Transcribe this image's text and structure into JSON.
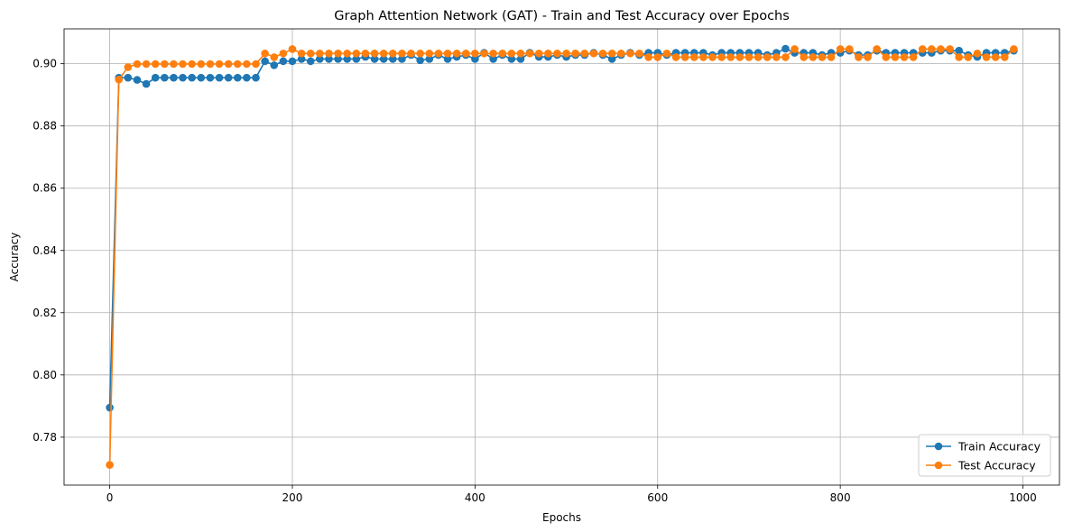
{
  "chart_data": {
    "type": "line",
    "title": "Graph Attention Network (GAT) - Train and Test Accuracy over Epochs",
    "xlabel": "Epochs",
    "ylabel": "Accuracy",
    "xlim": [
      -50,
      1040
    ],
    "ylim": [
      0.7646,
      0.9112
    ],
    "xticks": [
      0,
      200,
      400,
      600,
      800,
      1000
    ],
    "xtick_labels": [
      "0",
      "200",
      "400",
      "600",
      "800",
      "1000"
    ],
    "yticks": [
      0.78,
      0.8,
      0.82,
      0.84,
      0.86,
      0.88,
      0.9
    ],
    "ytick_labels": [
      "0.78",
      "0.80",
      "0.82",
      "0.84",
      "0.86",
      "0.88",
      "0.90"
    ],
    "grid": true,
    "legend_position": "lower-right",
    "markers": true,
    "x": [
      0,
      10,
      20,
      30,
      40,
      50,
      60,
      70,
      80,
      90,
      100,
      110,
      120,
      130,
      140,
      150,
      160,
      170,
      180,
      190,
      200,
      210,
      220,
      230,
      240,
      250,
      260,
      270,
      280,
      290,
      300,
      310,
      320,
      330,
      340,
      350,
      360,
      370,
      380,
      390,
      400,
      410,
      420,
      430,
      440,
      450,
      460,
      470,
      480,
      490,
      500,
      510,
      520,
      530,
      540,
      550,
      560,
      570,
      580,
      590,
      600,
      610,
      620,
      630,
      640,
      650,
      660,
      670,
      680,
      690,
      700,
      710,
      720,
      730,
      740,
      750,
      760,
      770,
      780,
      790,
      800,
      810,
      820,
      830,
      840,
      850,
      860,
      870,
      880,
      890,
      900,
      910,
      920,
      930,
      940,
      950,
      960,
      970,
      980,
      990
    ],
    "series": [
      {
        "name": "Train Accuracy",
        "color": "#1f77b4",
        "values": [
          0.7895,
          0.8955,
          0.8955,
          0.8948,
          0.8935,
          0.8955,
          0.8955,
          0.8955,
          0.8955,
          0.8955,
          0.8955,
          0.8955,
          0.8955,
          0.8955,
          0.8955,
          0.8955,
          0.8955,
          0.9008,
          0.8995,
          0.9008,
          0.9008,
          0.9015,
          0.9008,
          0.9015,
          0.9015,
          0.9015,
          0.9015,
          0.9015,
          0.9022,
          0.9015,
          0.9015,
          0.9015,
          0.9015,
          0.9028,
          0.9011,
          0.9015,
          0.9028,
          0.9015,
          0.9022,
          0.9028,
          0.9015,
          0.9035,
          0.9015,
          0.9028,
          0.9015,
          0.9015,
          0.9035,
          0.9022,
          0.9022,
          0.9028,
          0.9022,
          0.9028,
          0.9028,
          0.9035,
          0.9028,
          0.9015,
          0.9028,
          0.9035,
          0.9028,
          0.9035,
          0.9035,
          0.9028,
          0.9035,
          0.9035,
          0.9035,
          0.9035,
          0.9028,
          0.9035,
          0.9035,
          0.9035,
          0.9035,
          0.9035,
          0.9028,
          0.9035,
          0.9048,
          0.9035,
          0.9035,
          0.9035,
          0.9028,
          0.9035,
          0.9035,
          0.9042,
          0.9028,
          0.9028,
          0.9042,
          0.9035,
          0.9035,
          0.9035,
          0.9035,
          0.9035,
          0.9035,
          0.9042,
          0.9042,
          0.9042,
          0.9028,
          0.9022,
          0.9035,
          0.9035,
          0.9035,
          0.9042
        ]
      },
      {
        "name": "Test Accuracy",
        "color": "#ff7f0e",
        "values": [
          0.7711,
          0.8949,
          0.8989,
          0.8999,
          0.8999,
          0.8999,
          0.8999,
          0.8999,
          0.8999,
          0.8999,
          0.8999,
          0.8999,
          0.8999,
          0.8999,
          0.8999,
          0.8999,
          0.8999,
          0.9033,
          0.9021,
          0.9033,
          0.9047,
          0.9033,
          0.9033,
          0.9033,
          0.9033,
          0.9033,
          0.9033,
          0.9033,
          0.9033,
          0.9033,
          0.9033,
          0.9033,
          0.9033,
          0.9033,
          0.9033,
          0.9033,
          0.9033,
          0.9033,
          0.9033,
          0.9033,
          0.9033,
          0.9033,
          0.9033,
          0.9033,
          0.9033,
          0.9033,
          0.9033,
          0.9033,
          0.9033,
          0.9033,
          0.9033,
          0.9033,
          0.9033,
          0.9033,
          0.9033,
          0.9033,
          0.9033,
          0.9033,
          0.9033,
          0.9021,
          0.9021,
          0.9033,
          0.9021,
          0.9021,
          0.9021,
          0.9021,
          0.9021,
          0.9021,
          0.9021,
          0.9021,
          0.9021,
          0.9021,
          0.9021,
          0.9021,
          0.9021,
          0.9047,
          0.9021,
          0.9021,
          0.9021,
          0.9021,
          0.9047,
          0.9047,
          0.9021,
          0.9021,
          0.9047,
          0.9021,
          0.9021,
          0.9021,
          0.9021,
          0.9047,
          0.9047,
          0.9047,
          0.9047,
          0.9021,
          0.9021,
          0.9033,
          0.9021,
          0.9021,
          0.9021,
          0.9047
        ]
      }
    ]
  }
}
